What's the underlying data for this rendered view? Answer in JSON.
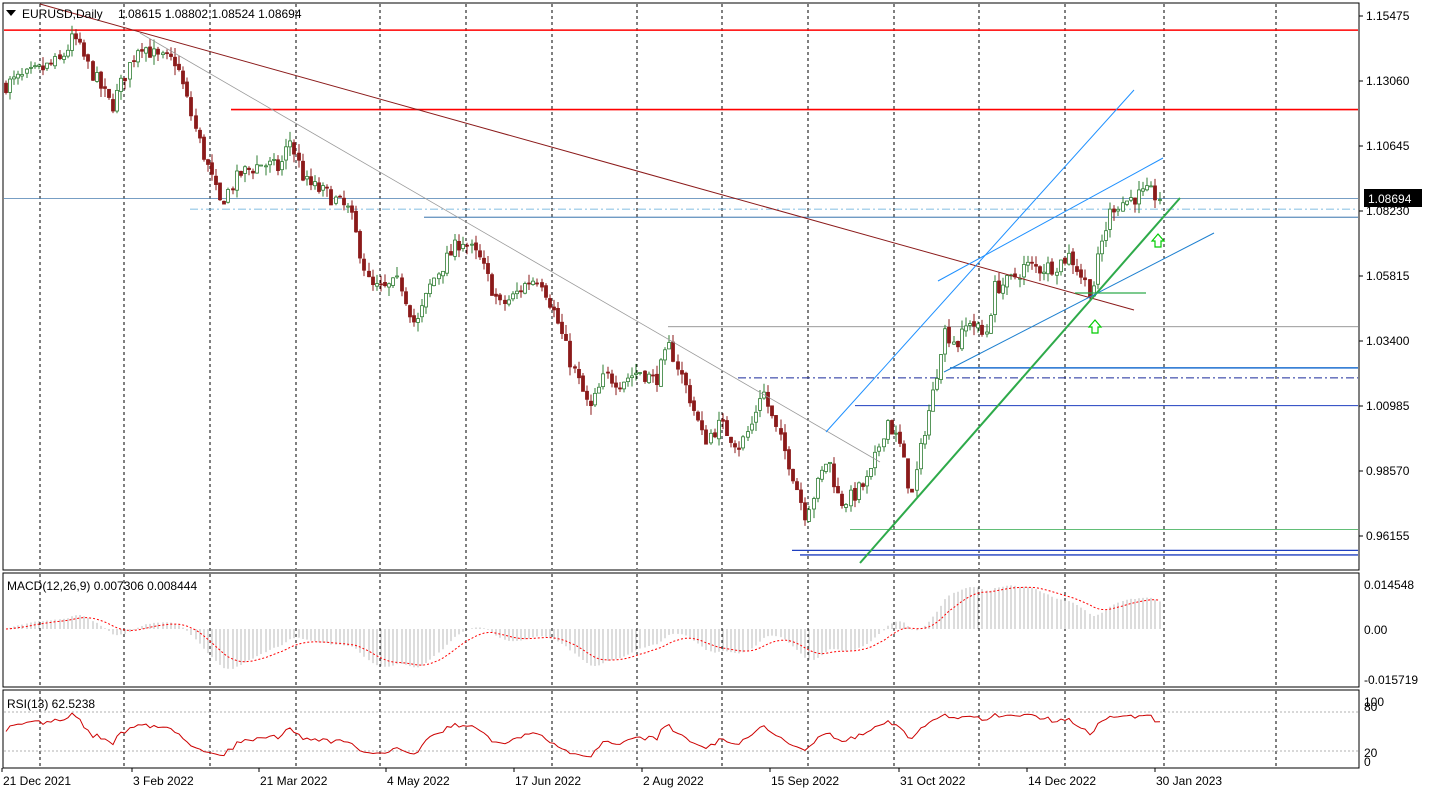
{
  "header": {
    "symbol_tf": "EURUSD,Daily",
    "ohlc": "1.08615 1.08802 1.08524 1.08694"
  },
  "current_price_label": "1.08694",
  "macd": {
    "label": "MACD(12,26,9) 0.007306 0.008444",
    "ticks": [
      "0.014548",
      "0.00",
      "-0.015719"
    ]
  },
  "rsi": {
    "label": "RSI(13) 62.5238",
    "ticks": [
      "100",
      "80",
      "20",
      "0"
    ]
  },
  "colors": {
    "bull": "#2e7d32",
    "bear": "#8b1a1a",
    "resistance": "#ff0000",
    "support": "#1f3fbf",
    "channel": "#1e90ff",
    "trend_up": "#2eaa4a",
    "trend_down": "#8b1a1a",
    "macd_hist": "#b8b8b8",
    "macd_signal": "#ff0000",
    "rsi_line": "#cc0000",
    "arrow": "#00cc00"
  },
  "chart_data": {
    "type": "candlestick",
    "symbol": "EURUSD",
    "timeframe": "Daily",
    "price_ticks": [
      "1.15475",
      "1.13060",
      "1.10645",
      "1.08230",
      "1.05815",
      "1.03400",
      "1.00985",
      "0.98570",
      "0.96155"
    ],
    "ylim": [
      0.9535,
      1.1607
    ],
    "date_labels": [
      "21 Dec 2021",
      "3 Feb 2022",
      "21 Mar 2022",
      "4 May 2022",
      "17 Jun 2022",
      "2 Aug 2022",
      "15 Sep 2022",
      "31 Oct 2022",
      "14 Dec 2022",
      "30 Jan 2023"
    ],
    "price_path_by_label": [
      {
        "date": "21 Dec 2021",
        "price": 1.129
      },
      {
        "date": "3 Feb 2022",
        "price": 1.145
      },
      {
        "date": "21 Mar 2022",
        "price": 1.103
      },
      {
        "date": "4 May 2022",
        "price": 1.053
      },
      {
        "date": "17 Jun 2022",
        "price": 1.05
      },
      {
        "date": "2 Aug 2022",
        "price": 1.023
      },
      {
        "date": "15 Sep 2022",
        "price": 1.0
      },
      {
        "date": "31 Oct 2022",
        "price": 0.988
      },
      {
        "date": "14 Dec 2022",
        "price": 1.063
      },
      {
        "date": "30 Jan 2023",
        "price": 1.0869
      }
    ],
    "horizontal_levels": [
      {
        "price": 1.1495,
        "role": "resistance"
      },
      {
        "price": 1.12,
        "role": "resistance"
      },
      {
        "price": 1.0869,
        "role": "current"
      },
      {
        "price": 1.08,
        "role": "support"
      },
      {
        "price": 1.0393,
        "role": "support"
      },
      {
        "price": 1.024,
        "role": "support"
      },
      {
        "price": 1.02,
        "role": "support"
      },
      {
        "price": 1.01,
        "role": "support"
      },
      {
        "price": 0.964,
        "role": "support"
      },
      {
        "price": 0.956,
        "role": "support"
      },
      {
        "price": 0.9545,
        "role": "support"
      }
    ],
    "macd": {
      "params": "12,26,9",
      "main": 0.007306,
      "signal": 0.008444,
      "ylim": [
        -0.015719,
        0.014548
      ]
    },
    "rsi": {
      "period": 13,
      "value": 62.5238,
      "levels": [
        80,
        20
      ],
      "ylim": [
        0,
        100
      ]
    }
  }
}
